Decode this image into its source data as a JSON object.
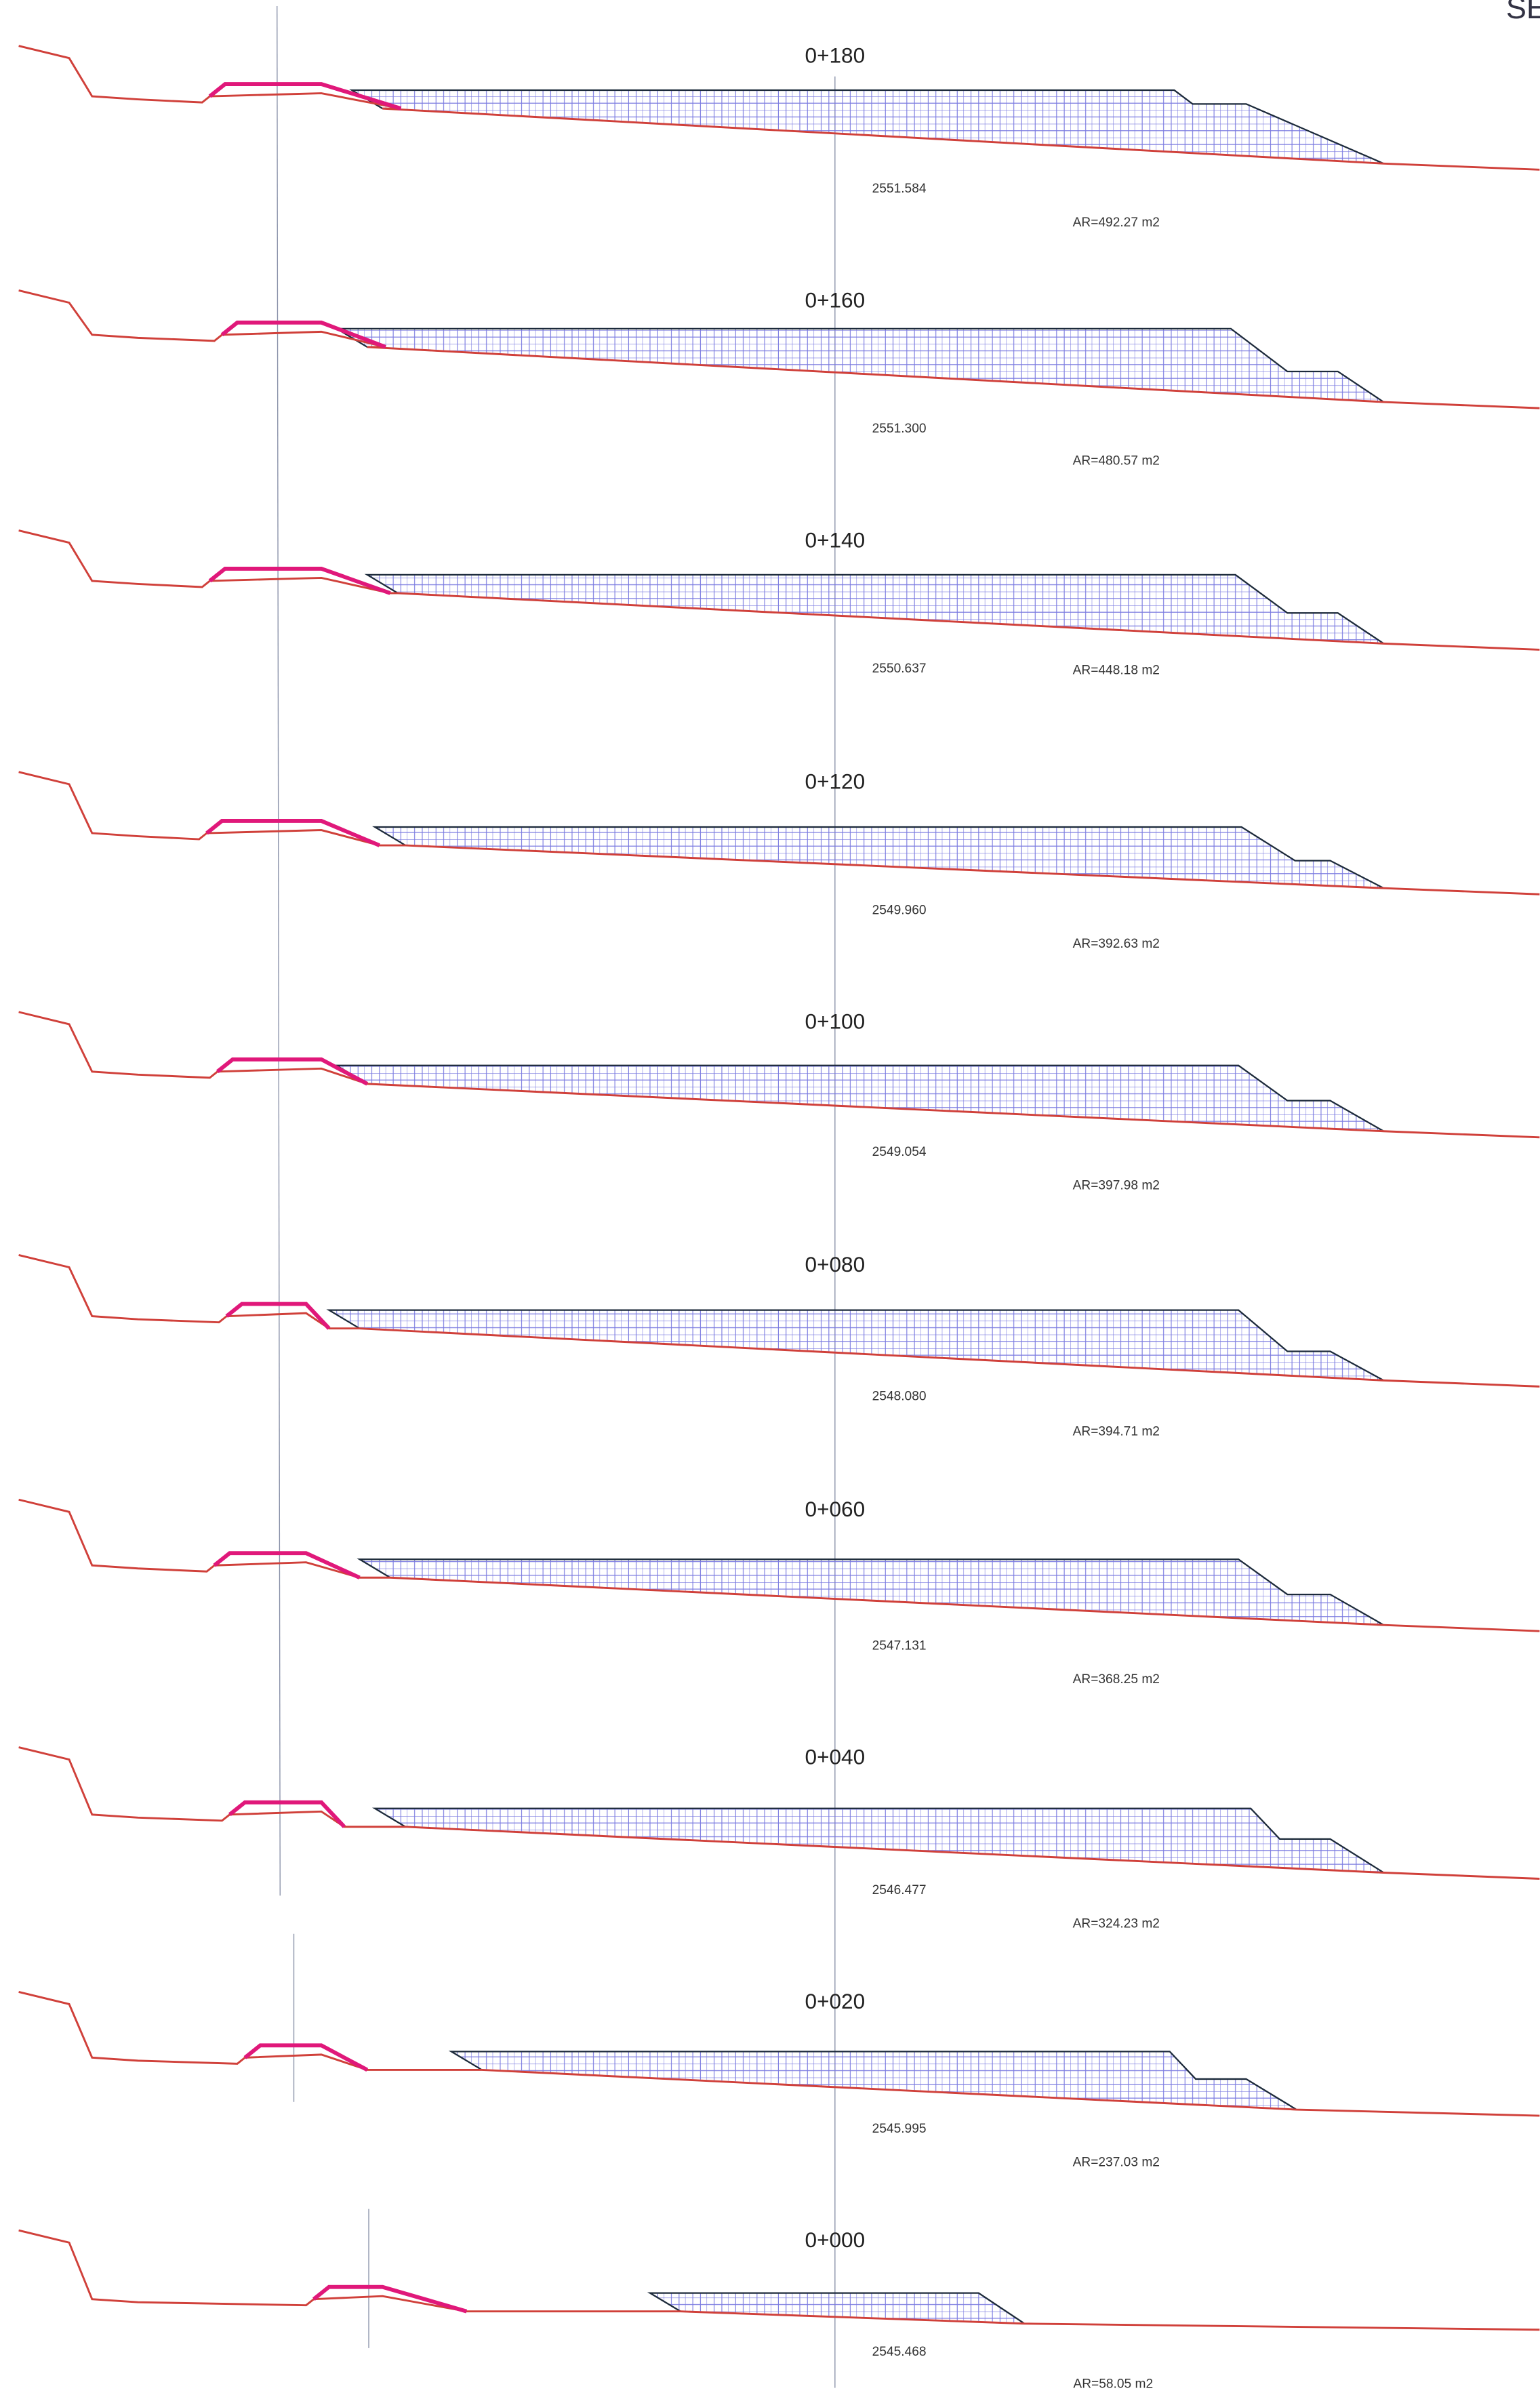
{
  "corner_label": "SE",
  "sections": [
    {
      "station": "0+180",
      "elevation": "2551.584",
      "area": "AR=492.27  m2"
    },
    {
      "station": "0+160",
      "elevation": "2551.300",
      "area": "AR=480.57  m2"
    },
    {
      "station": "0+140",
      "elevation": "2550.637",
      "area": "AR=448.18  m2"
    },
    {
      "station": "0+120",
      "elevation": "2549.960",
      "area": "AR=392.63  m2"
    },
    {
      "station": "0+100",
      "elevation": "2549.054",
      "area": "AR=397.98  m2"
    },
    {
      "station": "0+080",
      "elevation": "2548.080",
      "area": "AR=394.71  m2"
    },
    {
      "station": "0+060",
      "elevation": "2547.131",
      "area": "AR=368.25  m2"
    },
    {
      "station": "0+040",
      "elevation": "2546.477",
      "area": "AR=324.23  m2"
    },
    {
      "station": "0+020",
      "elevation": "2545.995",
      "area": "AR=237.03  m2"
    },
    {
      "station": "0+000",
      "elevation": "2545.468",
      "area": "AR=58.05  m2"
    }
  ]
}
